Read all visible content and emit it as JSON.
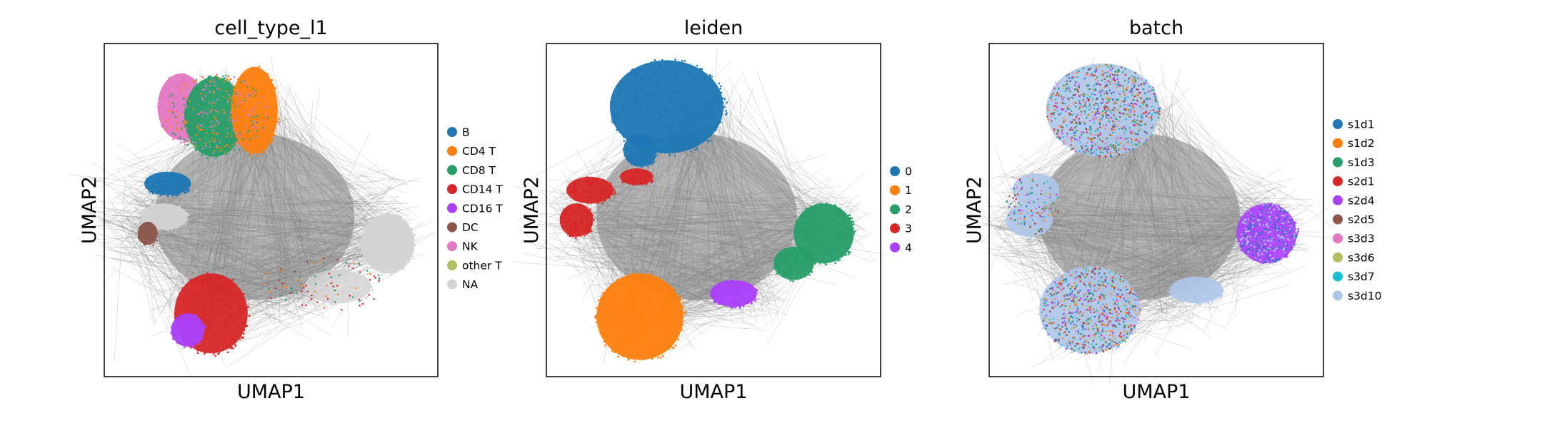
{
  "chart_data": [
    {
      "type": "scatter",
      "title": "cell_type_l1",
      "xlabel": "UMAP1",
      "ylabel": "UMAP2",
      "grid": false,
      "ticks": false,
      "legend_placement": "right",
      "edges": "gray PAGA/neighbor connectivity lines",
      "legend": [
        {
          "label": "B",
          "color": "#1f77b4"
        },
        {
          "label": "CD4 T",
          "color": "#ff7f0e"
        },
        {
          "label": "CD8 T",
          "color": "#279e68"
        },
        {
          "label": "CD14 T",
          "color": "#d62728"
        },
        {
          "label": "CD16 T",
          "color": "#aa40fc"
        },
        {
          "label": "DC",
          "color": "#8c564b"
        },
        {
          "label": "NK",
          "color": "#e377c2"
        },
        {
          "label": "other T",
          "color": "#b5bd61"
        },
        {
          "label": "NA",
          "color": "#d3d3d3"
        }
      ]
    },
    {
      "type": "scatter",
      "title": "leiden",
      "xlabel": "UMAP1",
      "ylabel": "UMAP2",
      "grid": false,
      "ticks": false,
      "legend_placement": "right",
      "edges": "gray PAGA/neighbor connectivity lines",
      "legend": [
        {
          "label": "0",
          "color": "#1f77b4"
        },
        {
          "label": "1",
          "color": "#ff7f0e"
        },
        {
          "label": "2",
          "color": "#279e68"
        },
        {
          "label": "3",
          "color": "#d62728"
        },
        {
          "label": "4",
          "color": "#aa40fc"
        }
      ]
    },
    {
      "type": "scatter",
      "title": "batch",
      "xlabel": "UMAP1",
      "ylabel": "UMAP2",
      "grid": false,
      "ticks": false,
      "legend_placement": "right",
      "edges": "gray PAGA/neighbor connectivity lines",
      "legend": [
        {
          "label": "s1d1",
          "color": "#1f77b4"
        },
        {
          "label": "s1d2",
          "color": "#ff7f0e"
        },
        {
          "label": "s1d3",
          "color": "#279e68"
        },
        {
          "label": "s2d1",
          "color": "#d62728"
        },
        {
          "label": "s2d4",
          "color": "#aa40fc"
        },
        {
          "label": "s2d5",
          "color": "#8c564b"
        },
        {
          "label": "s3d3",
          "color": "#e377c2"
        },
        {
          "label": "s3d6",
          "color": "#b5bd61"
        },
        {
          "label": "s3d7",
          "color": "#17becf"
        },
        {
          "label": "s3d10",
          "color": "#aec7e8"
        }
      ]
    }
  ]
}
